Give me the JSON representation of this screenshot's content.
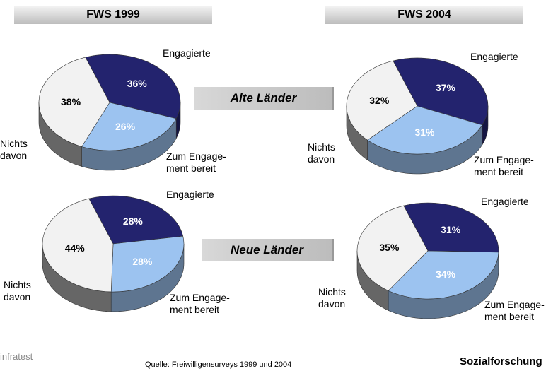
{
  "columns": [
    "FWS 1999",
    "FWS 2004"
  ],
  "rows": [
    "Alte Länder",
    "Neue Länder"
  ],
  "logo": "infratest",
  "source": "Quelle: Freiwilligensurveys 1999 und 2004",
  "brand": "Sozialforschung",
  "chart_data": [
    {
      "type": "pie",
      "categories": [
        "Engagierte",
        "Zum Engage-\nment bereit",
        "Nichts\ndavon"
      ],
      "values": [
        36,
        26,
        38
      ],
      "value_labels": [
        "36%",
        "26%",
        "38%"
      ],
      "colors": [
        "#23236e",
        "#9cc3f0",
        "#f2f2f2"
      ]
    },
    {
      "type": "pie",
      "categories": [
        "Engagierte",
        "Zum Engage-\nment bereit",
        "Nichts\ndavon"
      ],
      "values": [
        37,
        31,
        32
      ],
      "value_labels": [
        "37%",
        "31%",
        "32%"
      ],
      "colors": [
        "#23236e",
        "#9cc3f0",
        "#f2f2f2"
      ]
    },
    {
      "type": "pie",
      "categories": [
        "Engagierte",
        "Zum Engage-\nment bereit",
        "Nichts\ndavon"
      ],
      "values": [
        28,
        28,
        44
      ],
      "value_labels": [
        "28%",
        "28%",
        "44%"
      ],
      "colors": [
        "#23236e",
        "#9cc3f0",
        "#f2f2f2"
      ]
    },
    {
      "type": "pie",
      "categories": [
        "Engagierte",
        "Zum Engage-\nment bereit",
        "Nichts\ndavon"
      ],
      "values": [
        31,
        34,
        35
      ],
      "value_labels": [
        "31%",
        "34%",
        "35%"
      ],
      "colors": [
        "#23236e",
        "#9cc3f0",
        "#f2f2f2"
      ]
    }
  ]
}
